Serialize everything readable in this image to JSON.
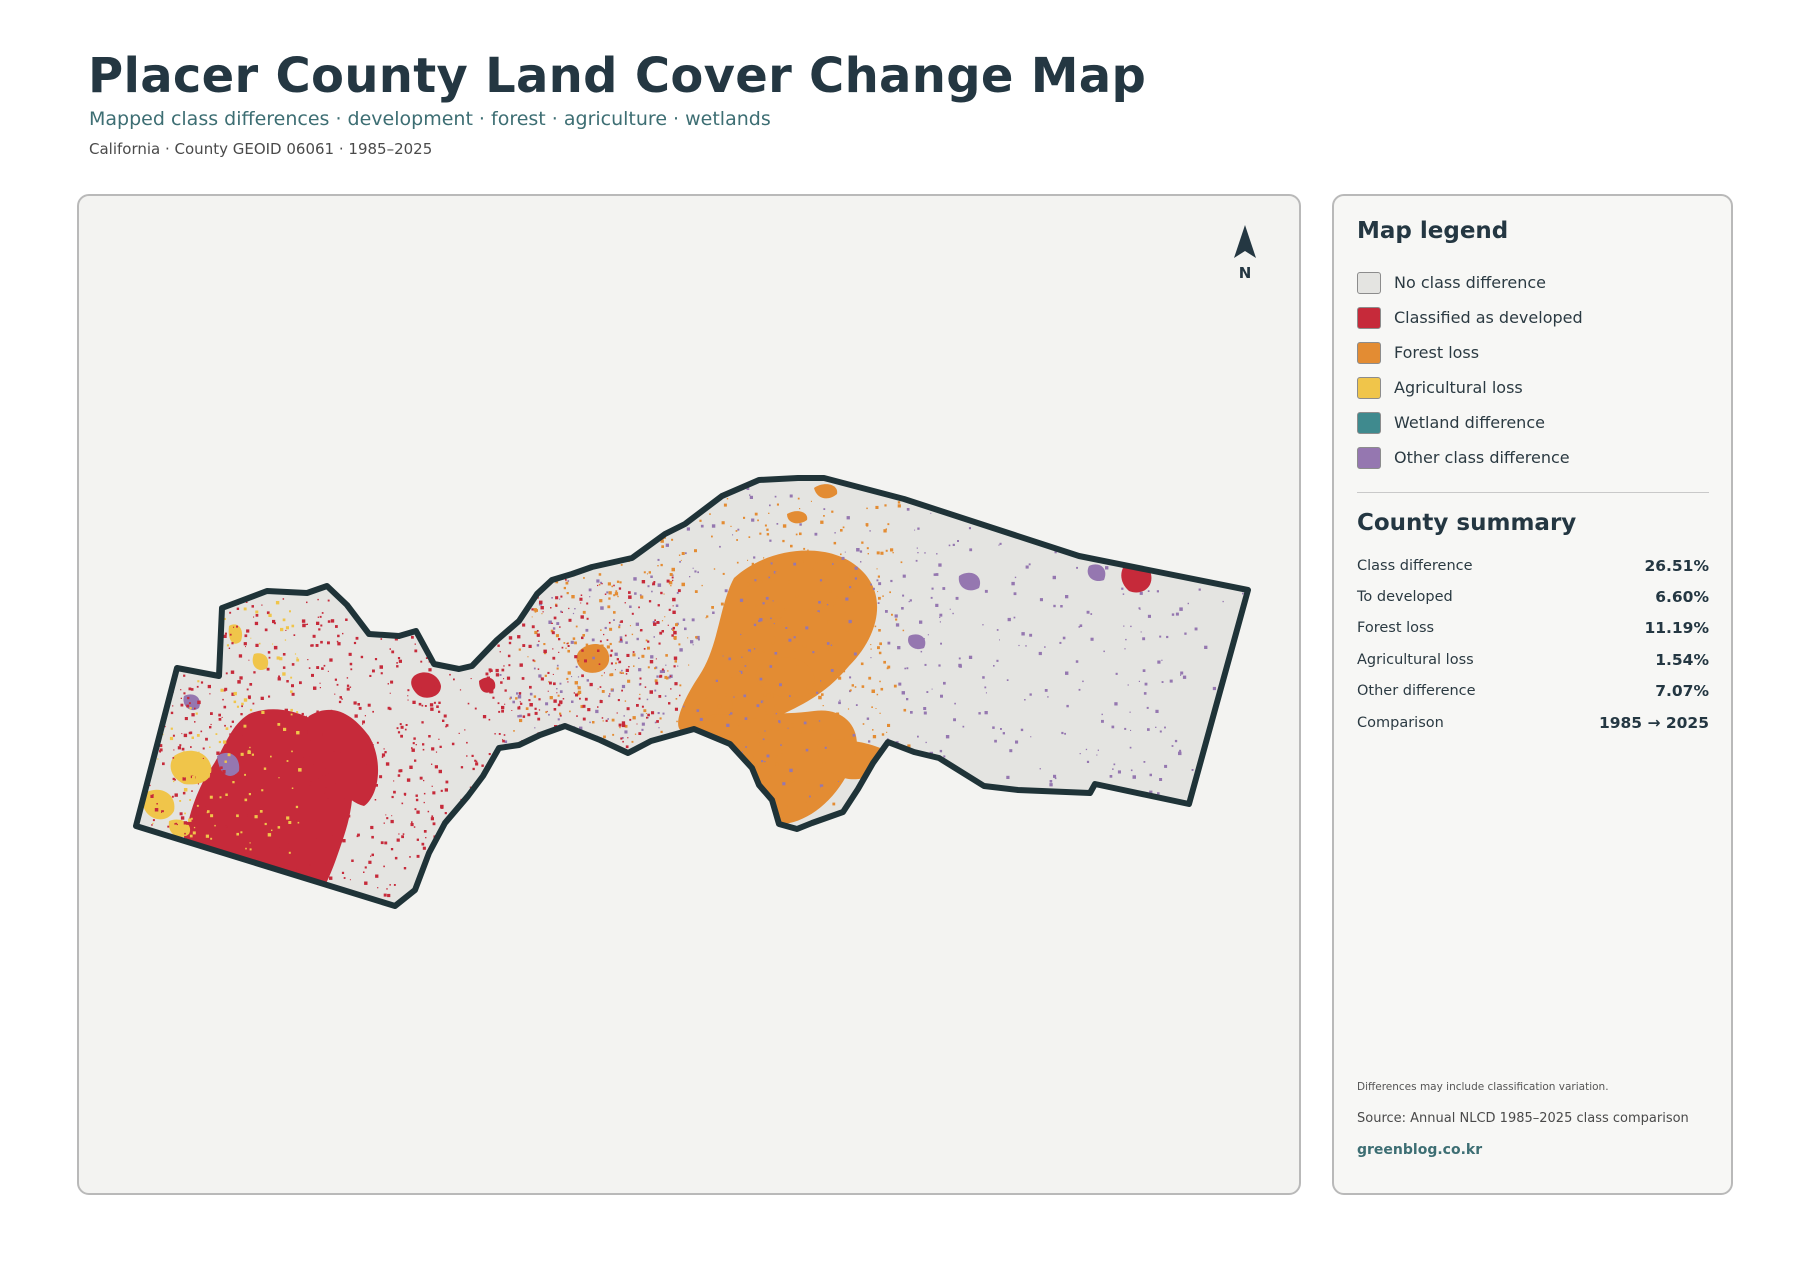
{
  "header": {
    "title": "Placer County Land Cover Change Map",
    "subtitle": "Mapped class differences · development · forest · agriculture · wetlands",
    "meta": "California · County GEOID 06061 · 1985–2025"
  },
  "map": {
    "north_label": "N",
    "colors": {
      "panel_bg": "#f3f3f1",
      "county_fill": "#e4e4e1",
      "county_outline": "#1f3338",
      "developed": "#c62a3a",
      "forest_loss": "#e38c33",
      "agricultural_loss": "#f0c54a",
      "wetland": "#3f8a8e",
      "other": "#9577b0"
    }
  },
  "legend": {
    "title": "Map legend",
    "items": [
      {
        "label": "No class difference",
        "color": "#e4e4e1",
        "icon": "swatch"
      },
      {
        "label": "Classified as developed",
        "color": "#c62a3a",
        "icon": "swatch"
      },
      {
        "label": "Forest loss",
        "color": "#e38c33",
        "icon": "swatch"
      },
      {
        "label": "Agricultural loss",
        "color": "#f0c54a",
        "icon": "swatch"
      },
      {
        "label": "Wetland difference",
        "color": "#3f8a8e",
        "icon": "swatch"
      },
      {
        "label": "Other class difference",
        "color": "#9577b0",
        "icon": "swatch"
      }
    ]
  },
  "summary": {
    "title": "County summary",
    "rows": [
      {
        "key": "Class difference",
        "value": "26.51%"
      },
      {
        "key": "To developed",
        "value": "6.60%"
      },
      {
        "key": "Forest loss",
        "value": "11.19%"
      },
      {
        "key": "Agricultural loss",
        "value": "1.54%"
      },
      {
        "key": "Other difference",
        "value": "7.07%"
      },
      {
        "key": "Comparison",
        "value": "1985 → 2025"
      }
    ]
  },
  "footer": {
    "note": "Differences may include classification variation.",
    "source": "Source: Annual NLCD 1985–2025 class comparison",
    "site": "greenblog.co.kr"
  }
}
